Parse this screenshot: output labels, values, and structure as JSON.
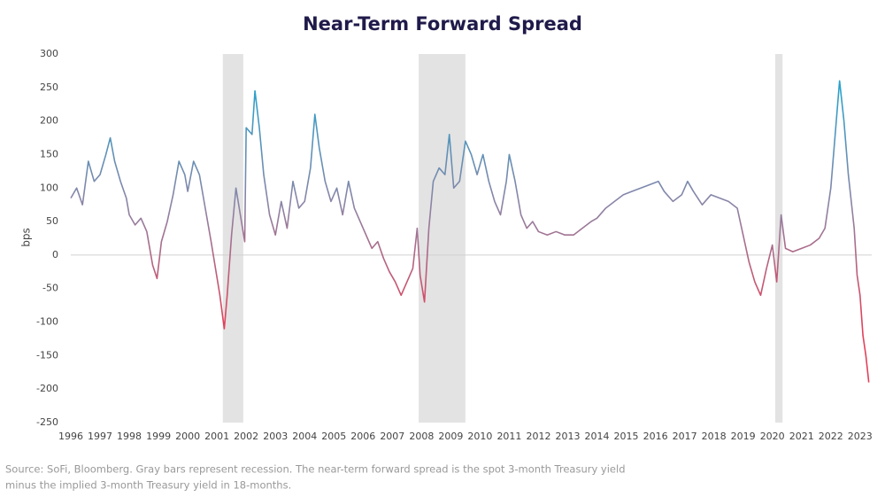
{
  "chart_data": {
    "type": "line",
    "title": "Near-Term Forward Spread",
    "y_label": "bps",
    "source_lines": [
      "Source: SoFi, Bloomberg. Gray bars represent recession. The near-term forward spread is the spot 3-month Treasury yield",
      "minus the implied 3-month Treasury yield in 18-months."
    ],
    "xlim": [
      1996,
      2023.4
    ],
    "xticks": [
      1996,
      1997,
      1998,
      1999,
      2000,
      2001,
      2002,
      2003,
      2004,
      2005,
      2006,
      2007,
      2008,
      2009,
      2010,
      2011,
      2012,
      2013,
      2014,
      2015,
      2016,
      2017,
      2018,
      2019,
      2020,
      2021,
      2022,
      2023
    ],
    "ylim": [
      -250,
      300
    ],
    "yticks": [
      -250,
      -200,
      -150,
      -100,
      -50,
      0,
      50,
      100,
      150,
      200,
      250,
      300
    ],
    "recessions": [
      [
        2001.2,
        2001.9
      ],
      [
        2007.9,
        2009.5
      ],
      [
        2020.1,
        2020.35
      ]
    ],
    "recession_color": "#e3e3e3",
    "color_stops": [
      {
        "value": 250,
        "color": "#2aa2cc"
      },
      {
        "value": 75,
        "color": "#8c84a6"
      },
      {
        "value": -100,
        "color": "#e0425a"
      }
    ],
    "x": [
      1996.0,
      1996.2,
      1996.4,
      1996.6,
      1996.8,
      1997.0,
      1997.2,
      1997.35,
      1997.5,
      1997.7,
      1997.9,
      1998.0,
      1998.2,
      1998.4,
      1998.6,
      1998.8,
      1998.95,
      1999.1,
      1999.3,
      1999.5,
      1999.7,
      1999.9,
      2000.0,
      2000.2,
      2000.4,
      2000.6,
      2000.8,
      2000.95,
      2001.1,
      2001.25,
      2001.35,
      2001.5,
      2001.65,
      2001.8,
      2001.95,
      2002.0,
      2002.2,
      2002.3,
      2002.45,
      2002.6,
      2002.8,
      2003.0,
      2003.2,
      2003.4,
      2003.6,
      2003.8,
      2004.0,
      2004.2,
      2004.35,
      2004.5,
      2004.7,
      2004.9,
      2005.1,
      2005.3,
      2005.5,
      2005.7,
      2005.9,
      2006.1,
      2006.3,
      2006.5,
      2006.7,
      2006.9,
      2007.1,
      2007.3,
      2007.5,
      2007.7,
      2007.85,
      2007.95,
      2008.1,
      2008.25,
      2008.4,
      2008.6,
      2008.8,
      2008.95,
      2009.1,
      2009.3,
      2009.5,
      2009.7,
      2009.9,
      2010.1,
      2010.3,
      2010.5,
      2010.7,
      2010.9,
      2011.0,
      2011.2,
      2011.4,
      2011.6,
      2011.8,
      2012.0,
      2012.3,
      2012.6,
      2012.9,
      2013.2,
      2013.5,
      2013.8,
      2014.0,
      2014.3,
      2014.6,
      2014.9,
      2015.2,
      2015.5,
      2015.8,
      2016.1,
      2016.3,
      2016.6,
      2016.9,
      2017.1,
      2017.3,
      2017.6,
      2017.9,
      2018.2,
      2018.5,
      2018.8,
      2019.0,
      2019.2,
      2019.4,
      2019.6,
      2019.8,
      2020.0,
      2020.15,
      2020.3,
      2020.45,
      2020.7,
      2021.0,
      2021.3,
      2021.6,
      2021.8,
      2022.0,
      2022.15,
      2022.3,
      2022.45,
      2022.6,
      2022.8,
      2022.9,
      2023.0,
      2023.1,
      2023.2,
      2023.3
    ],
    "values": [
      85,
      100,
      75,
      140,
      110,
      120,
      150,
      175,
      140,
      110,
      85,
      60,
      45,
      55,
      35,
      -15,
      -35,
      20,
      50,
      90,
      140,
      120,
      95,
      140,
      120,
      70,
      20,
      -20,
      -60,
      -110,
      -60,
      30,
      100,
      60,
      20,
      190,
      180,
      245,
      190,
      120,
      60,
      30,
      80,
      40,
      110,
      70,
      80,
      130,
      210,
      160,
      110,
      80,
      100,
      60,
      110,
      70,
      50,
      30,
      10,
      20,
      -5,
      -25,
      -40,
      -60,
      -40,
      -20,
      40,
      -30,
      -70,
      40,
      110,
      130,
      120,
      180,
      100,
      110,
      170,
      150,
      120,
      150,
      110,
      80,
      60,
      110,
      150,
      110,
      60,
      40,
      50,
      35,
      30,
      35,
      30,
      30,
      40,
      50,
      55,
      70,
      80,
      90,
      95,
      100,
      105,
      110,
      95,
      80,
      90,
      110,
      95,
      75,
      90,
      85,
      80,
      70,
      30,
      -10,
      -40,
      -60,
      -20,
      15,
      -40,
      60,
      10,
      5,
      10,
      15,
      25,
      40,
      100,
      180,
      260,
      200,
      120,
      40,
      -30,
      -60,
      -120,
      -150,
      -190
    ]
  }
}
